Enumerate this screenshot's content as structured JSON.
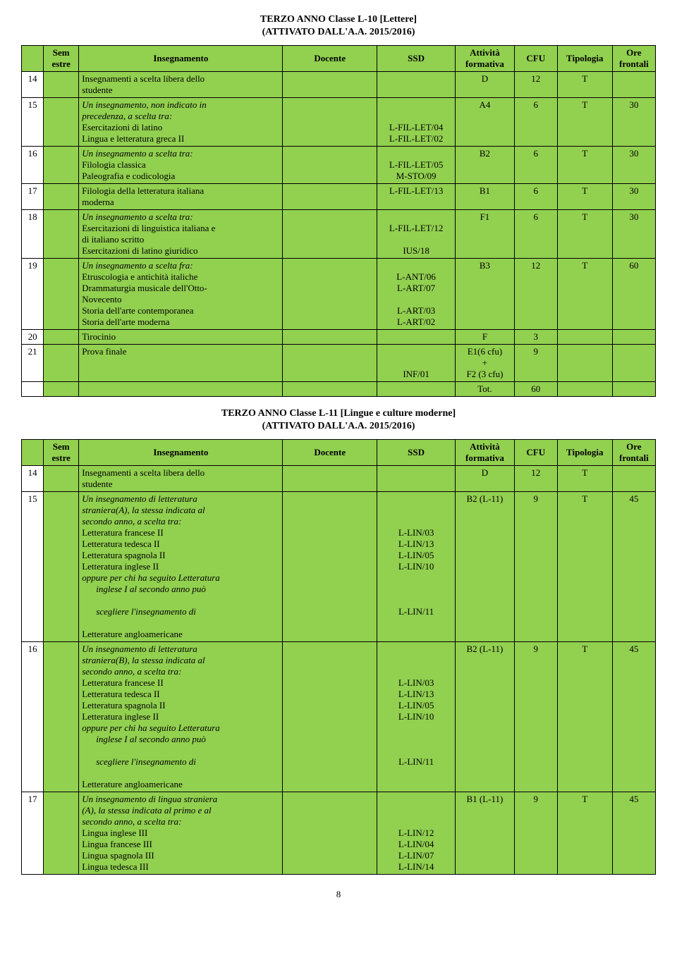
{
  "page": {
    "title1": "TERZO ANNO Classe L-10 [Lettere]",
    "subtitle1": "(ATTIVATO DALL'A.A. 2015/2016)",
    "title2": "TERZO ANNO Classe L-11 [Lingue e culture moderne]",
    "subtitle2": "(ATTIVATO DALL'A.A. 2015/2016)",
    "pageNumber": "8"
  },
  "headers": {
    "sem": "Sem\nestre",
    "ins": "Insegnamento",
    "doc": "Docente",
    "ssd": "SSD",
    "att": "Attività\nformativa",
    "cfu": "CFU",
    "tip": "Tipologia",
    "ore": "Ore\nfrontali"
  },
  "table1": {
    "rows": [
      {
        "n": "14",
        "ins_lines": [
          "Insegnamenti a scelta libera dello",
          "studente"
        ],
        "ssd": "",
        "att": "D",
        "cfu": "12",
        "tip": "T",
        "ore": ""
      },
      {
        "n": "15",
        "ins_lines": [
          "<i>Un insegnamento, non indicato in</i>",
          "<i>precedenza, a scelta tra:</i>",
          "Esercitazioni di latino",
          "Lingua e letteratura greca II"
        ],
        "ssd": "\n\nL-FIL-LET/04\nL-FIL-LET/02",
        "att": "A4",
        "cfu": "6",
        "tip": "T",
        "ore": "30"
      },
      {
        "n": "16",
        "ins_lines": [
          "<i>Un insegnamento a scelta tra:</i>",
          "Filologia classica",
          "Paleografia e codicologia"
        ],
        "ssd": "\nL-FIL-LET/05\nM-STO/09",
        "att": "B2",
        "cfu": "6",
        "tip": "T",
        "ore": "30"
      },
      {
        "n": "17",
        "ins_lines": [
          "Filologia della letteratura italiana",
          "moderna"
        ],
        "ssd": "L-FIL-LET/13",
        "att": "B1",
        "cfu": "6",
        "tip": "T",
        "ore": "30"
      },
      {
        "n": "18",
        "ins_lines": [
          "<i>Un insegnamento a scelta tra:</i>",
          "Esercitazioni di linguistica italiana e",
          "di italiano scritto",
          "Esercitazioni di latino giuridico"
        ],
        "ssd": "\nL-FIL-LET/12\n\nIUS/18",
        "att": "F1",
        "cfu": "6",
        "tip": "T",
        "ore": "30"
      },
      {
        "n": "19",
        "ins_lines": [
          "<i>Un insegnamento a scelta fra:</i>",
          "Etruscologia e antichità italiche",
          "Drammaturgia musicale dell'Otto-",
          "Novecento",
          "Storia dell'arte contemporanea",
          "Storia dell'arte moderna"
        ],
        "ssd": "\nL-ANT/06\nL-ART/07\n\nL-ART/03\nL-ART/02",
        "att": "B3",
        "cfu": "12",
        "tip": "T",
        "ore": "60"
      },
      {
        "n": "20",
        "ins_lines": [
          "Tirocinio"
        ],
        "ssd": "",
        "att": "F",
        "cfu": "3",
        "tip": "",
        "ore": ""
      },
      {
        "n": "21",
        "ins_lines": [
          "Prova finale"
        ],
        "ssd": "\n\nINF/01",
        "att": "E1(6 cfu)\n+\nF2 (3 cfu)",
        "cfu": "9",
        "tip": "",
        "ore": ""
      }
    ],
    "totalRow": {
      "att": "Tot.",
      "cfu": "60"
    }
  },
  "table2": {
    "rows": [
      {
        "n": "14",
        "ins_lines": [
          "Insegnamenti a scelta libera dello",
          "studente"
        ],
        "ssd": "",
        "att": "D",
        "cfu": "12",
        "tip": "T",
        "ore": ""
      },
      {
        "n": "15",
        "ins_lines": [
          "<i>Un insegnamento di letteratura</i>",
          "<i>straniera(A), la stessa indicata al</i>",
          "<i>secondo anno, a scelta tra:</i>",
          "Letteratura francese II",
          "Letteratura tedesca II",
          "Letteratura spagnola II",
          "Letteratura inglese II",
          "<i>oppure per chi ha seguito Letteratura</i>",
          "<span class='indent'><i>inglese I al secondo anno può</i></span>",
          "<span class='indent'><i>scegliere l'insegnamento di</i></span>",
          "Letterature angloamericane"
        ],
        "ssd": "\n\n\nL-LIN/03\nL-LIN/13\nL-LIN/05\nL-LIN/10\n\n\n\nL-LIN/11",
        "att": "B2 (L-11)",
        "cfu": "9",
        "tip": "T",
        "ore": "45"
      },
      {
        "n": "16",
        "ins_lines": [
          "<i>Un insegnamento di letteratura</i>",
          "<i>straniera(B), la stessa indicata al</i>",
          "<i>secondo anno, a scelta tra:</i>",
          "Letteratura francese II",
          "Letteratura tedesca II",
          "Letteratura spagnola II",
          "Letteratura inglese II",
          "<i>oppure per chi ha seguito Letteratura</i>",
          "<span class='indent'><i>inglese I al secondo anno può</i></span>",
          "<span class='indent'><i>scegliere l'insegnamento di</i></span>",
          "Letterature angloamericane"
        ],
        "ssd": "\n\n\nL-LIN/03\nL-LIN/13\nL-LIN/05\nL-LIN/10\n\n\n\nL-LIN/11",
        "att": "B2 (L-11)",
        "cfu": "9",
        "tip": "T",
        "ore": "45"
      },
      {
        "n": "17",
        "ins_lines": [
          "<i>Un insegnamento di lingua straniera</i>",
          "<i>(A), la stessa indicata al primo e al</i>",
          "<i>secondo anno, a scelta tra:</i>",
          "Lingua inglese III",
          "Lingua francese III",
          "Lingua spagnola III",
          "Lingua tedesca III"
        ],
        "ssd": "\n\n\nL-LIN/12\nL-LIN/04\nL-LIN/07\nL-LIN/14",
        "att": "B1 (L-11)",
        "cfu": "9",
        "tip": "T",
        "ore": "45"
      }
    ]
  },
  "colors": {
    "headerBg": "#92d050",
    "border": "#000000"
  }
}
